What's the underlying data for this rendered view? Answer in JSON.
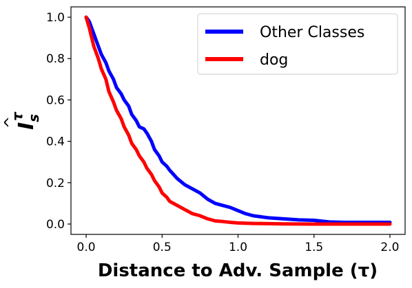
{
  "chart_data": {
    "type": "line",
    "title": "",
    "xlabel": "Distance to Adv. Sample (τ)",
    "ylabel": "Î_s^τ",
    "xlim": [
      -0.1,
      2.1
    ],
    "ylim": [
      -0.05,
      1.05
    ],
    "xticks": [
      0.0,
      0.5,
      1.0,
      1.5,
      2.0
    ],
    "xtick_labels": [
      "0.0",
      "0.5",
      "1.0",
      "1.5",
      "2.0"
    ],
    "yticks": [
      0.0,
      0.2,
      0.4,
      0.6,
      0.8,
      1.0
    ],
    "ytick_labels": [
      "0.0",
      "0.2",
      "0.4",
      "0.6",
      "0.8",
      "1.0"
    ],
    "grid": false,
    "legend": "top-right",
    "series": [
      {
        "name": "Other Classes",
        "color": "#0000ff",
        "x": [
          0.0,
          0.02,
          0.05,
          0.08,
          0.1,
          0.13,
          0.15,
          0.18,
          0.2,
          0.23,
          0.25,
          0.28,
          0.3,
          0.33,
          0.35,
          0.38,
          0.4,
          0.43,
          0.45,
          0.48,
          0.5,
          0.53,
          0.55,
          0.6,
          0.65,
          0.7,
          0.75,
          0.8,
          0.85,
          0.9,
          0.95,
          1.0,
          1.05,
          1.1,
          1.15,
          1.2,
          1.3,
          1.4,
          1.5,
          1.6,
          1.7,
          1.8,
          1.9,
          2.0
        ],
        "y": [
          1.0,
          0.98,
          0.92,
          0.86,
          0.82,
          0.78,
          0.74,
          0.7,
          0.66,
          0.63,
          0.6,
          0.57,
          0.53,
          0.5,
          0.47,
          0.46,
          0.44,
          0.4,
          0.36,
          0.33,
          0.3,
          0.28,
          0.26,
          0.22,
          0.19,
          0.17,
          0.15,
          0.12,
          0.1,
          0.09,
          0.08,
          0.065,
          0.05,
          0.04,
          0.035,
          0.03,
          0.025,
          0.02,
          0.018,
          0.01,
          0.008,
          0.008,
          0.008,
          0.008
        ]
      },
      {
        "name": "dog",
        "color": "#ff0000",
        "x": [
          0.0,
          0.02,
          0.05,
          0.08,
          0.1,
          0.13,
          0.15,
          0.18,
          0.2,
          0.23,
          0.25,
          0.28,
          0.3,
          0.33,
          0.35,
          0.38,
          0.4,
          0.43,
          0.45,
          0.48,
          0.5,
          0.53,
          0.55,
          0.6,
          0.65,
          0.7,
          0.75,
          0.8,
          0.85,
          0.9,
          0.95,
          1.0,
          1.1,
          1.2,
          1.3,
          1.5,
          1.7,
          2.0
        ],
        "y": [
          1.0,
          0.95,
          0.86,
          0.8,
          0.75,
          0.7,
          0.64,
          0.59,
          0.55,
          0.51,
          0.47,
          0.43,
          0.39,
          0.36,
          0.33,
          0.3,
          0.27,
          0.24,
          0.21,
          0.18,
          0.15,
          0.13,
          0.11,
          0.09,
          0.07,
          0.05,
          0.04,
          0.025,
          0.015,
          0.012,
          0.008,
          0.005,
          0.003,
          0.002,
          0.001,
          0.0,
          0.0,
          0.0
        ]
      }
    ]
  }
}
